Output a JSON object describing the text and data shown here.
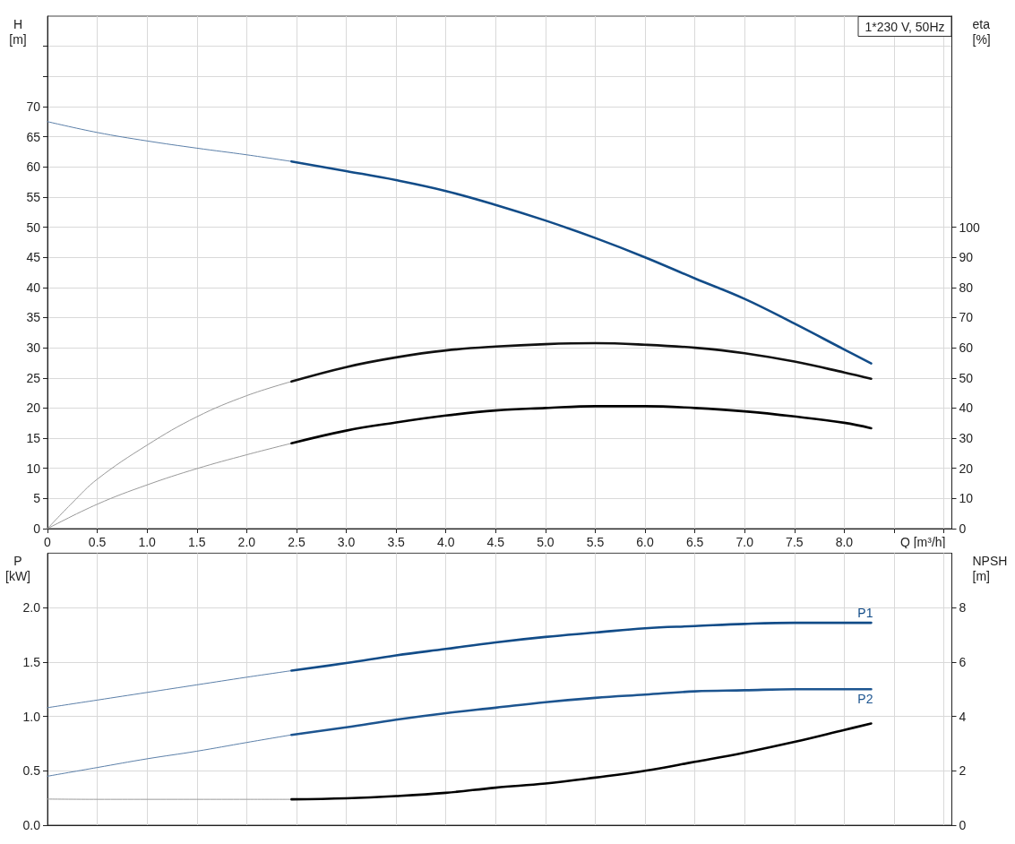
{
  "chart_data": [
    {
      "type": "line",
      "title": "1*230 V, 50Hz",
      "xlabel": "Q [m³/h]",
      "ylabel": "H [m]",
      "y2label": "eta [%]",
      "xlim": [
        0,
        9.08
      ],
      "xticks": [
        0,
        0.5,
        {
          "value": 1,
          "label": "1.0"
        },
        1.5,
        {
          "value": 2,
          "label": "2.0"
        },
        2.5,
        {
          "value": 3,
          "label": "3.0"
        },
        3.5,
        {
          "value": 4,
          "label": "4.0"
        },
        4.5,
        {
          "value": 5,
          "label": "5.0"
        },
        5.5,
        {
          "value": 6,
          "label": "6.0"
        },
        6.5,
        {
          "value": 7,
          "label": "7.0"
        },
        7.5,
        {
          "value": 8,
          "label": "8.0"
        },
        {
          "value": 8.5,
          "label": null
        },
        {
          "value": 9,
          "label": null
        }
      ],
      "ylim": [
        0,
        85
      ],
      "yticks": [
        0,
        5,
        10,
        15,
        20,
        25,
        30,
        35,
        40,
        45,
        50,
        55,
        60,
        65,
        70,
        {
          "value": 75,
          "label": null
        },
        {
          "value": 80,
          "label": null
        }
      ],
      "y2lim": [
        0,
        170
      ],
      "y2ticks": [
        0,
        10,
        20,
        30,
        40,
        50,
        60,
        70,
        80,
        90,
        100
      ],
      "grid": true,
      "marker": "none",
      "line_style": "solid",
      "series": [
        {
          "color": "#5b7fa8",
          "x": [
            0,
            0.5,
            1,
            1.5,
            2,
            2.45
          ],
          "values": [
            67.5,
            65.7,
            64.3,
            63.1,
            62.0,
            60.9
          ]
        },
        {
          "color": "#124c88",
          "x": [
            2.45,
            3,
            3.5,
            4,
            4.5,
            5,
            5.5,
            6,
            6.5,
            7,
            7.5,
            8,
            8.27
          ],
          "values": [
            60.9,
            59.3,
            57.8,
            56.0,
            53.7,
            51.1,
            48.2,
            45.0,
            41.5,
            38.1,
            34.0,
            29.7,
            27.4
          ]
        },
        {
          "color": "#999999",
          "axis": "y2",
          "x": [
            0,
            0.25,
            0.5,
            1,
            1.5,
            2,
            2.45
          ],
          "values": [
            0,
            8.6,
            16.4,
            27.7,
            37.1,
            44.1,
            48.8
          ]
        },
        {
          "color": "#111111",
          "axis": "y2",
          "x": [
            2.45,
            3,
            3.5,
            4,
            4.5,
            5,
            5.5,
            6,
            6.5,
            7,
            7.5,
            8,
            8.27
          ],
          "values": [
            48.8,
            53.6,
            56.8,
            59.1,
            60.4,
            61.2,
            61.5,
            61.0,
            60.0,
            58.2,
            55.4,
            51.8,
            49.7
          ]
        },
        {
          "color": "#999999",
          "axis": "y2",
          "x": [
            0,
            0.5,
            1,
            1.5,
            2,
            2.45
          ],
          "values": [
            0,
            8.1,
            14.5,
            19.9,
            24.5,
            28.3
          ]
        },
        {
          "color": "#000000",
          "axis": "y2",
          "x": [
            2.45,
            3,
            3.5,
            4,
            4.5,
            5,
            5.5,
            6,
            6.5,
            7,
            7.5,
            8,
            8.27
          ],
          "values": [
            28.3,
            32.5,
            35.2,
            37.5,
            39.2,
            40.0,
            40.6,
            40.6,
            40.0,
            38.9,
            37.2,
            35.1,
            33.3
          ]
        }
      ]
    },
    {
      "type": "line",
      "ylabel": "P [kW]",
      "y2label": "NPSH [m]",
      "xlim": [
        0,
        9.08
      ],
      "xticks": [
        0,
        0.5,
        1,
        1.5,
        2,
        2.5,
        3,
        3.5,
        4,
        4.5,
        5,
        5.5,
        6,
        6.5,
        7,
        7.5,
        8,
        8.5,
        9
      ],
      "ylim": [
        0,
        2.5
      ],
      "yticks": [
        {
          "value": 0,
          "label": "0.0"
        },
        0.5,
        {
          "value": 1,
          "label": "1.0"
        },
        1.5,
        {
          "value": 2,
          "label": "2.0"
        }
      ],
      "y2lim": [
        0,
        10
      ],
      "y2ticks": [
        0,
        2,
        4,
        6,
        8
      ],
      "tick_labels": "y",
      "grid": true,
      "marker": "none",
      "line_style": "solid",
      "series": [
        {
          "color": "#5b7fa8",
          "x": [
            0,
            0.5,
            1,
            1.5,
            2,
            2.45
          ],
          "values": [
            1.08,
            1.15,
            1.22,
            1.29,
            1.36,
            1.42
          ]
        },
        {
          "name": "P1",
          "color": "#124c88",
          "x": [
            2.45,
            3,
            3.5,
            4,
            4.5,
            5,
            5.5,
            6,
            6.5,
            7,
            7.5,
            8,
            8.27
          ],
          "values": [
            1.42,
            1.49,
            1.56,
            1.62,
            1.68,
            1.73,
            1.77,
            1.81,
            1.83,
            1.85,
            1.86,
            1.86,
            1.86
          ]
        },
        {
          "color": "#5b7fa8",
          "x": [
            0,
            0.5,
            1,
            1.5,
            2,
            2.45
          ],
          "values": [
            0.45,
            0.53,
            0.61,
            0.68,
            0.76,
            0.83
          ]
        },
        {
          "name": "P2",
          "color": "#1d5590",
          "x": [
            2.45,
            3,
            3.5,
            4,
            4.5,
            5,
            5.5,
            6,
            6.5,
            7,
            7.5,
            8,
            8.27
          ],
          "values": [
            0.83,
            0.9,
            0.97,
            1.03,
            1.08,
            1.13,
            1.17,
            1.2,
            1.23,
            1.24,
            1.25,
            1.25,
            1.25
          ]
        },
        {
          "color": "#999999",
          "axis": "y2",
          "x": [
            0,
            0.5,
            1,
            1.5,
            2,
            2.45
          ],
          "values": [
            0.96,
            0.95,
            0.95,
            0.95,
            0.95,
            0.95
          ]
        },
        {
          "color": "#000000",
          "axis": "y2",
          "x": [
            2.45,
            3,
            3.5,
            4,
            4.5,
            5,
            5.5,
            6,
            6.5,
            7,
            7.5,
            8,
            8.27
          ],
          "values": [
            0.95,
            0.99,
            1.07,
            1.19,
            1.38,
            1.53,
            1.75,
            2.0,
            2.33,
            2.67,
            3.06,
            3.5,
            3.74
          ]
        }
      ]
    }
  ]
}
